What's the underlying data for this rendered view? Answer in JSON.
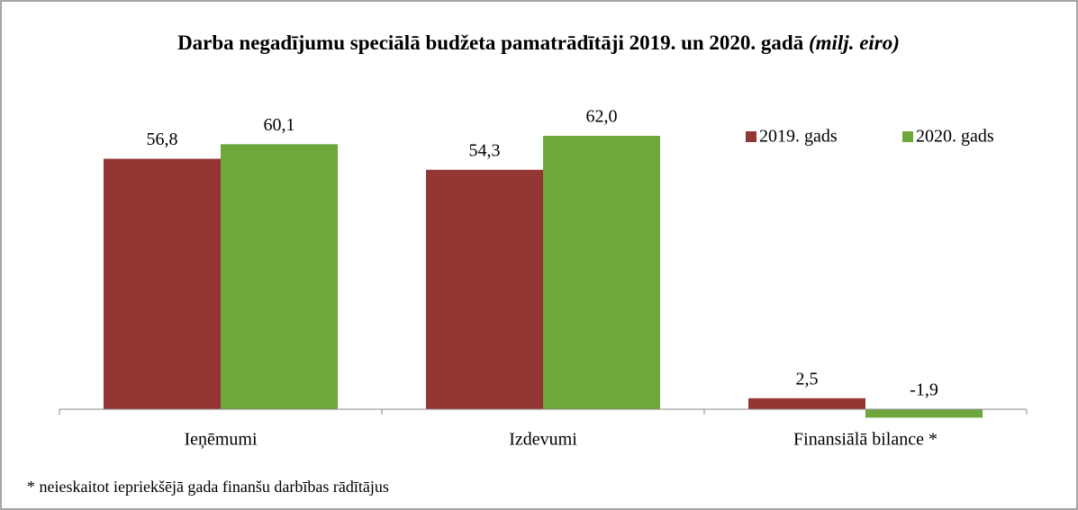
{
  "chart_data": {
    "type": "bar",
    "title": "Darba negadījumu speciālā budžeta pamatrādītāji 2019. un 2020. gadā",
    "subtitle": "(milj. eiro)",
    "categories": [
      "Ieņēmumi",
      "Izdevumi",
      "Finansiālā bilance *"
    ],
    "series": [
      {
        "name": "2019. gads",
        "color": "#943634",
        "values": [
          56.8,
          54.3,
          2.5
        ],
        "value_labels": [
          "56,8",
          "54,3",
          "2,5"
        ]
      },
      {
        "name": "2020. gads",
        "color": "#6ea83c",
        "values": [
          60.1,
          62.0,
          -1.9
        ],
        "value_labels": [
          "60,1",
          "62,0",
          "-1,9"
        ]
      }
    ],
    "legend": "top-right",
    "footnote": "* neieskaitot iepriekšējā gada finanšu darbības rādītājus"
  }
}
